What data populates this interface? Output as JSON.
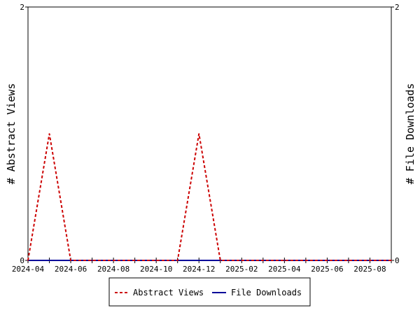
{
  "chart_data": {
    "type": "line",
    "x_ticks": [
      "2024-04",
      "2024-06",
      "2024-08",
      "2024-10",
      "2024-12",
      "2025-02",
      "2025-04",
      "2025-06",
      "2025-08"
    ],
    "x": [
      "2024-04",
      "2024-05",
      "2024-06",
      "2024-07",
      "2024-08",
      "2024-09",
      "2024-10",
      "2024-11",
      "2024-12",
      "2025-01",
      "2025-02",
      "2025-03",
      "2025-04",
      "2025-05",
      "2025-06",
      "2025-07",
      "2025-08",
      "2025-09"
    ],
    "y_left": {
      "label": "# Abstract Views",
      "range": [
        0,
        2
      ],
      "ticks": [
        "0",
        "2"
      ]
    },
    "y_right": {
      "label": "# File Downloads",
      "range": [
        0,
        2
      ],
      "ticks": [
        "0",
        "2"
      ]
    },
    "series": [
      {
        "name": "Abstract Views",
        "axis": "left",
        "color": "#cc0000",
        "style": "dashed",
        "values": [
          0,
          1,
          0,
          0,
          0,
          0,
          0,
          0,
          1,
          0,
          0,
          0,
          0,
          0,
          0,
          0,
          0,
          0
        ]
      },
      {
        "name": "File Downloads",
        "axis": "right",
        "color": "#000099",
        "style": "solid",
        "values": [
          0,
          0,
          0,
          0,
          0,
          0,
          0,
          0,
          0,
          0,
          0,
          0,
          0,
          0,
          0,
          0,
          0,
          0
        ]
      }
    ],
    "grid": false,
    "legend_position": "bottom"
  }
}
